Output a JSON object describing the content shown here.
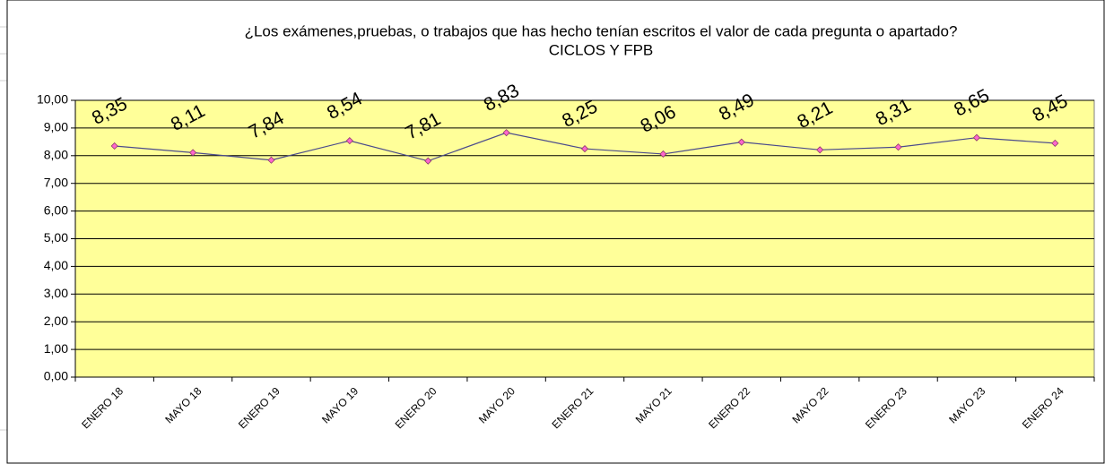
{
  "chart_data": {
    "type": "line",
    "title": "¿Los exámenes,pruebas, o trabajos que has hecho tenían escritos el valor de cada pregunta o apartado?",
    "subtitle": "CICLOS Y FPB",
    "categories": [
      "ENERO 18",
      "MAYO 18",
      "ENERO 19",
      "MAYO 19",
      "ENERO 20",
      "MAYO 20",
      "ENERO 21",
      "MAYO 21",
      "ENERO 22",
      "MAYO 22",
      "ENERO 23",
      "MAYO 23",
      "ENERO 24"
    ],
    "values": [
      8.35,
      8.11,
      7.84,
      8.54,
      7.81,
      8.83,
      8.25,
      8.06,
      8.49,
      8.21,
      8.31,
      8.65,
      8.45
    ],
    "value_labels": [
      "8,35",
      "8,11",
      "7,84",
      "8,54",
      "7,81",
      "8,83",
      "8,25",
      "8,06",
      "8,49",
      "8,21",
      "8,31",
      "8,65",
      "8,45"
    ],
    "color": "#4b4b8c",
    "marker_color": "#ff66cc",
    "plot_color": "#ffff99",
    "ylim": [
      0,
      10
    ],
    "yticks": [
      {
        "value": 0,
        "label": "0,00"
      },
      {
        "value": 1,
        "label": "1,00"
      },
      {
        "value": 2,
        "label": "2,00"
      },
      {
        "value": 3,
        "label": "3,00"
      },
      {
        "value": 4,
        "label": "4,00"
      },
      {
        "value": 5,
        "label": "5,00"
      },
      {
        "value": 6,
        "label": "6,00"
      },
      {
        "value": 7,
        "label": "7,00"
      },
      {
        "value": 8,
        "label": "8,00"
      },
      {
        "value": 9,
        "label": "9,00"
      },
      {
        "value": 10,
        "label": "10,00"
      }
    ],
    "grid": true
  }
}
